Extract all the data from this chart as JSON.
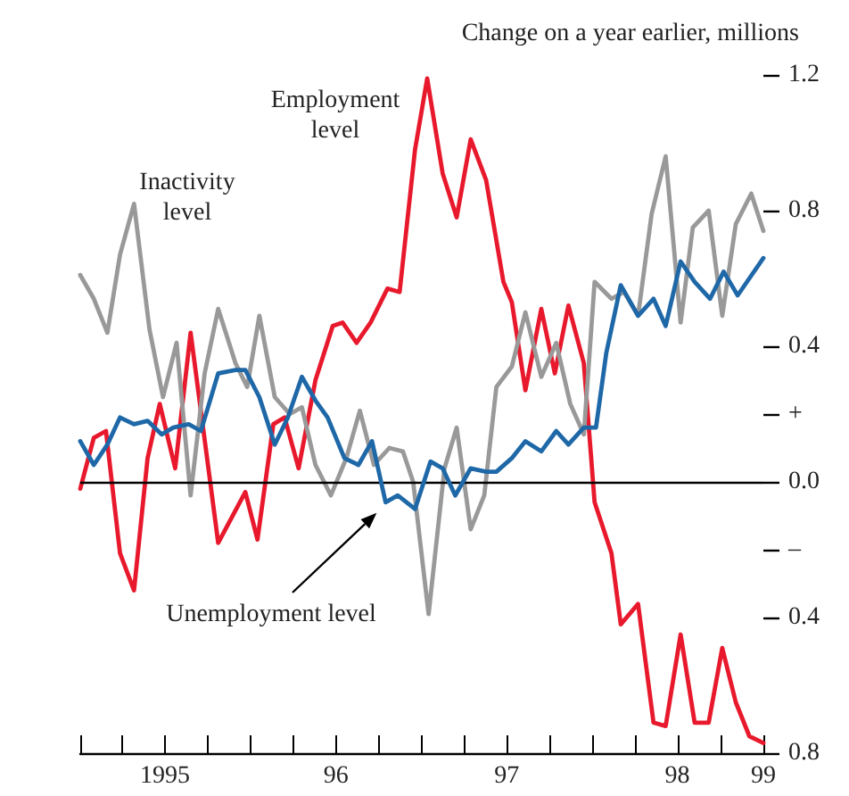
{
  "chart_data": {
    "type": "line",
    "ylabel": "Change on a year earlier, millions",
    "xlim": [
      "1995-01-01",
      "1999-01-01"
    ],
    "xticks": [
      {
        "value": "1995-01-01",
        "label": null
      },
      {
        "value": "1995-04-01",
        "label": null
      },
      {
        "value": "1995-07-01",
        "label": "1995"
      },
      {
        "value": "1995-10-01",
        "label": null
      },
      {
        "value": "1996-01-01",
        "label": null
      },
      {
        "value": "1996-04-01",
        "label": null
      },
      {
        "value": "1996-07-01",
        "label": "96"
      },
      {
        "value": "1996-10-01",
        "label": null
      },
      {
        "value": "1997-01-01",
        "label": null
      },
      {
        "value": "1997-04-01",
        "label": null
      },
      {
        "value": "1997-07-01",
        "label": "97"
      },
      {
        "value": "1997-10-01",
        "label": null
      },
      {
        "value": "1998-01-01",
        "label": null
      },
      {
        "value": "1998-04-01",
        "label": null
      },
      {
        "value": "1998-07-01",
        "label": "98"
      },
      {
        "value": "1998-10-01",
        "label": null
      },
      {
        "value": "1999-01-01",
        "label": "99"
      }
    ],
    "ylim": [
      -0.8,
      1.2
    ],
    "yticks": [
      {
        "value": 1.2,
        "label": "1.2"
      },
      {
        "value": 0.8,
        "label": "0.8"
      },
      {
        "value": 0.4,
        "label": "0.4"
      },
      {
        "value": 0.2,
        "label": "+"
      },
      {
        "value": 0,
        "label": "0.0"
      },
      {
        "value": -0.2,
        "label": "–"
      },
      {
        "value": -0.4,
        "label": "0.4"
      },
      {
        "value": -0.8,
        "label": "0.8"
      }
    ],
    "marker": "none",
    "line_style": "solid",
    "ref_lines": [
      {
        "axis": "y",
        "value": 0,
        "color": "#000000"
      }
    ],
    "series": [
      {
        "name": "Employment level",
        "color": "#e8192c",
        "x": [
          "1995-01-01",
          "1995-01-30",
          "1995-02-25",
          "1995-03-27",
          "1995-04-26",
          "1995-05-25",
          "1995-06-20",
          "1995-07-23",
          "1995-08-25",
          "1995-10-23",
          "1995-12-20",
          "1996-01-15",
          "1996-02-18",
          "1996-03-13",
          "1996-04-12",
          "1996-05-18",
          "1996-06-24",
          "1996-07-15",
          "1996-08-14",
          "1996-09-13",
          "1996-10-19",
          "1996-11-14",
          "1996-12-17",
          "1997-01-12",
          "1997-02-14",
          "1997-03-16",
          "1997-04-15",
          "1997-05-18",
          "1997-06-24",
          "1997-07-12",
          "1997-08-10",
          "1997-09-13",
          "1997-10-12",
          "1997-11-10",
          "1997-12-13",
          "1998-01-05",
          "1998-02-10",
          "1998-03-02",
          "1998-04-08",
          "1998-05-11",
          "1998-06-06",
          "1998-07-08",
          "1998-08-07",
          "1998-09-06",
          "1998-10-05",
          "1998-11-03",
          "1998-12-02",
          "1999-01-01"
        ],
        "values": [
          -0.02,
          0.13,
          0.15,
          -0.21,
          -0.32,
          0.07,
          0.23,
          0.04,
          0.44,
          -0.18,
          -0.03,
          -0.17,
          0.17,
          0.19,
          0.04,
          0.3,
          0.46,
          0.47,
          0.41,
          0.47,
          0.57,
          0.56,
          0.98,
          1.19,
          0.91,
          0.78,
          1.01,
          0.89,
          0.59,
          0.53,
          0.27,
          0.51,
          0.32,
          0.52,
          0.35,
          -0.06,
          -0.21,
          -0.42,
          -0.36,
          -0.71,
          -0.72,
          -0.45,
          -0.71,
          -0.71,
          -0.49,
          -0.65,
          -0.75,
          -0.77
        ]
      },
      {
        "name": "Inactivity level",
        "color": "#999999",
        "x": [
          "1995-01-01",
          "1995-01-30",
          "1995-02-28",
          "1995-03-27",
          "1995-04-26",
          "1995-05-29",
          "1995-06-27",
          "1995-07-26",
          "1995-08-25",
          "1995-09-24",
          "1995-10-23",
          "1995-11-29",
          "1995-12-24",
          "1996-01-19",
          "1996-02-21",
          "1996-03-24",
          "1996-04-19",
          "1996-05-18",
          "1996-06-20",
          "1996-07-23",
          "1996-08-21",
          "1996-09-20",
          "1996-10-23",
          "1996-11-21",
          "1996-12-13",
          "1997-01-15",
          "1997-02-18",
          "1997-03-16",
          "1997-04-15",
          "1997-05-14",
          "1997-06-09",
          "1997-07-12",
          "1997-08-10",
          "1997-09-13",
          "1997-10-15",
          "1997-11-14",
          "1997-12-13",
          "1998-01-05",
          "1998-02-10",
          "1998-03-09",
          "1998-04-08",
          "1998-05-07",
          "1998-06-06",
          "1998-07-08",
          "1998-08-03",
          "1998-09-06",
          "1998-10-05",
          "1998-11-03",
          "1998-12-06",
          "1999-01-01"
        ],
        "values": [
          0.61,
          0.54,
          0.44,
          0.67,
          0.82,
          0.45,
          0.25,
          0.41,
          -0.04,
          0.32,
          0.51,
          0.35,
          0.28,
          0.49,
          0.25,
          0.2,
          0.22,
          0.05,
          -0.04,
          0.07,
          0.21,
          0.05,
          0.1,
          0.09,
          0.0,
          -0.39,
          0.04,
          0.16,
          -0.14,
          -0.04,
          0.28,
          0.34,
          0.5,
          0.31,
          0.41,
          0.23,
          0.14,
          0.59,
          0.54,
          0.56,
          0.49,
          0.79,
          0.96,
          0.47,
          0.75,
          0.8,
          0.49,
          0.76,
          0.85,
          0.74
        ]
      },
      {
        "name": "Unemployment level",
        "color": "#1f68a8",
        "x": [
          "1995-01-01",
          "1995-01-30",
          "1995-02-28",
          "1995-03-27",
          "1995-04-26",
          "1995-05-25",
          "1995-06-24",
          "1995-07-19",
          "1995-08-21",
          "1995-09-16",
          "1995-10-23",
          "1995-11-29",
          "1995-12-20",
          "1996-01-19",
          "1996-02-21",
          "1996-03-20",
          "1996-04-19",
          "1996-05-18",
          "1996-06-13",
          "1996-07-19",
          "1996-08-18",
          "1996-09-16",
          "1996-10-15",
          "1996-11-10",
          "1996-12-17",
          "1997-01-19",
          "1997-02-14",
          "1997-03-13",
          "1997-04-15",
          "1997-05-18",
          "1997-06-09",
          "1997-07-12",
          "1997-08-10",
          "1997-09-13",
          "1997-10-15",
          "1997-11-10",
          "1997-12-13",
          "1998-01-08",
          "1998-01-30",
          "1998-03-02",
          "1998-04-08",
          "1998-05-11",
          "1998-06-06",
          "1998-07-08",
          "1998-08-07",
          "1998-09-09",
          "1998-10-08",
          "1998-11-07",
          "1999-01-01"
        ],
        "values": [
          0.12,
          0.05,
          0.11,
          0.19,
          0.17,
          0.18,
          0.14,
          0.16,
          0.17,
          0.15,
          0.32,
          0.33,
          0.33,
          0.25,
          0.11,
          0.19,
          0.31,
          0.24,
          0.19,
          0.07,
          0.05,
          0.12,
          -0.06,
          -0.04,
          -0.08,
          0.06,
          0.04,
          -0.04,
          0.04,
          0.03,
          0.03,
          0.07,
          0.12,
          0.09,
          0.15,
          0.11,
          0.16,
          0.16,
          0.38,
          0.58,
          0.49,
          0.54,
          0.46,
          0.65,
          0.59,
          0.54,
          0.62,
          0.55,
          0.66
        ]
      }
    ]
  }
}
